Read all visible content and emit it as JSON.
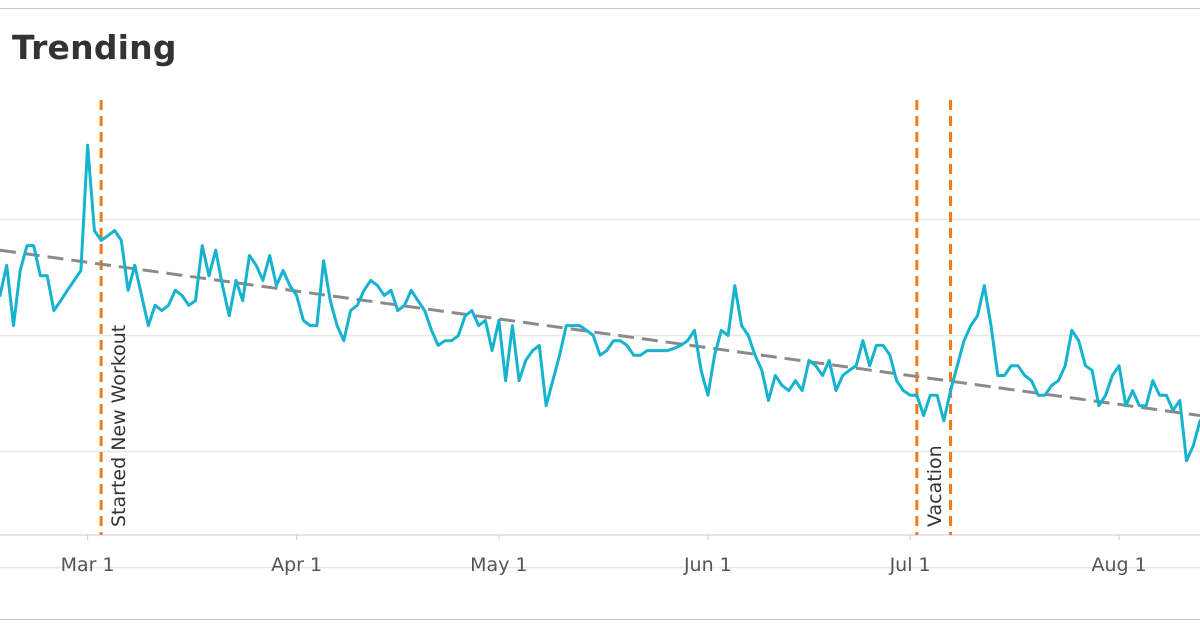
{
  "page": {
    "title": "Trending"
  },
  "colors": {
    "series": "#16b3cf",
    "trend": "#8a8a8a",
    "annotation": "#f07a1a",
    "grid": "#e8e8e8",
    "axis": "#cccccc"
  },
  "chart_data": {
    "type": "line",
    "title": "Trending",
    "xlabel": "",
    "ylabel": "",
    "x_ticks": [
      "2023-03-01",
      "2023-04-01",
      "2023-05-01",
      "2023-06-01",
      "2023-07-01",
      "2023-08-01"
    ],
    "x_tick_labels": [
      "Mar 1",
      "Apr 1",
      "May 1",
      "Jun 1",
      "Jul 1",
      "Aug 1"
    ],
    "xlim": [
      "2023-02-16",
      "2023-08-13"
    ],
    "ylim": [
      0,
      100
    ],
    "gridlines": [
      10,
      30,
      50,
      70
    ],
    "grid": true,
    "series": [
      {
        "type": "solid",
        "x": [
          "2023-02-16",
          "2023-02-17",
          "2023-02-18",
          "2023-02-19",
          "2023-02-20",
          "2023-02-21",
          "2023-02-22",
          "2023-02-23",
          "2023-02-24",
          "2023-02-25",
          "2023-02-26",
          "2023-02-27",
          "2023-02-28",
          "2023-03-01",
          "2023-03-02",
          "2023-03-03",
          "2023-03-04",
          "2023-03-05",
          "2023-03-06",
          "2023-03-07",
          "2023-03-08",
          "2023-03-09",
          "2023-03-10",
          "2023-03-11",
          "2023-03-12",
          "2023-03-13",
          "2023-03-14",
          "2023-03-15",
          "2023-03-16",
          "2023-03-17",
          "2023-03-18",
          "2023-03-19",
          "2023-03-20",
          "2023-03-21",
          "2023-03-22",
          "2023-03-23",
          "2023-03-24",
          "2023-03-25",
          "2023-03-26",
          "2023-03-27",
          "2023-03-28",
          "2023-03-29",
          "2023-03-30",
          "2023-03-31",
          "2023-04-01",
          "2023-04-02",
          "2023-04-03",
          "2023-04-04",
          "2023-04-05",
          "2023-04-06",
          "2023-04-07",
          "2023-04-08",
          "2023-04-09",
          "2023-04-10",
          "2023-04-11",
          "2023-04-12",
          "2023-04-13",
          "2023-04-14",
          "2023-04-15",
          "2023-04-16",
          "2023-04-17",
          "2023-04-18",
          "2023-04-19",
          "2023-04-20",
          "2023-04-21",
          "2023-04-22",
          "2023-04-23",
          "2023-04-24",
          "2023-04-25",
          "2023-04-26",
          "2023-04-27",
          "2023-04-28",
          "2023-04-29",
          "2023-04-30",
          "2023-05-01",
          "2023-05-02",
          "2023-05-03",
          "2023-05-04",
          "2023-05-05",
          "2023-05-06",
          "2023-05-07",
          "2023-05-08",
          "2023-05-09",
          "2023-05-10",
          "2023-05-11",
          "2023-05-12",
          "2023-05-13",
          "2023-05-14",
          "2023-05-15",
          "2023-05-16",
          "2023-05-17",
          "2023-05-18",
          "2023-05-19",
          "2023-05-20",
          "2023-05-21",
          "2023-05-22",
          "2023-05-23",
          "2023-05-24",
          "2023-05-25",
          "2023-05-26",
          "2023-05-27",
          "2023-05-28",
          "2023-05-29",
          "2023-05-30",
          "2023-05-31",
          "2023-06-01",
          "2023-06-02",
          "2023-06-03",
          "2023-06-04",
          "2023-06-05",
          "2023-06-06",
          "2023-06-07",
          "2023-06-08",
          "2023-06-09",
          "2023-06-10",
          "2023-06-11",
          "2023-06-12",
          "2023-06-13",
          "2023-06-14",
          "2023-06-15",
          "2023-06-16",
          "2023-06-17",
          "2023-06-18",
          "2023-06-19",
          "2023-06-20",
          "2023-06-21",
          "2023-06-22",
          "2023-06-23",
          "2023-06-24",
          "2023-06-25",
          "2023-06-26",
          "2023-06-27",
          "2023-06-28",
          "2023-06-29",
          "2023-06-30",
          "2023-07-01",
          "2023-07-02",
          "2023-07-03",
          "2023-07-04",
          "2023-07-05",
          "2023-07-06",
          "2023-07-07",
          "2023-07-08",
          "2023-07-09",
          "2023-07-10",
          "2023-07-11",
          "2023-07-12",
          "2023-07-13",
          "2023-07-14",
          "2023-07-15",
          "2023-07-16",
          "2023-07-17",
          "2023-07-18",
          "2023-07-19",
          "2023-07-20",
          "2023-07-21",
          "2023-07-22",
          "2023-07-23",
          "2023-07-24",
          "2023-07-25",
          "2023-07-26",
          "2023-07-27",
          "2023-07-28",
          "2023-07-29",
          "2023-07-30",
          "2023-07-31",
          "2023-08-01",
          "2023-08-02",
          "2023-08-03",
          "2023-08-04",
          "2023-08-05",
          "2023-08-06",
          "2023-08-07",
          "2023-08-08",
          "2023-08-09",
          "2023-08-10",
          "2023-08-11",
          "2023-08-12",
          "2023-08-13"
        ],
        "y": [
          56.9,
          62.1,
          51.7,
          61.2,
          65.5,
          65.5,
          60.3,
          60.3,
          54.3,
          56.0,
          57.8,
          59.5,
          61.2,
          82.8,
          68.1,
          66.4,
          67.2,
          68.1,
          66.4,
          57.8,
          62.1,
          56.9,
          51.7,
          55.2,
          54.3,
          55.2,
          57.8,
          56.9,
          55.2,
          56.0,
          65.5,
          60.3,
          64.7,
          58.6,
          53.4,
          59.5,
          56.0,
          63.8,
          62.1,
          59.5,
          63.8,
          58.6,
          61.2,
          58.6,
          56.9,
          52.6,
          51.7,
          51.7,
          62.9,
          56.0,
          51.7,
          49.1,
          54.3,
          55.2,
          57.8,
          59.5,
          58.6,
          56.9,
          57.8,
          54.3,
          55.2,
          57.8,
          56.0,
          54.3,
          50.9,
          48.3,
          49.1,
          49.1,
          50.0,
          53.4,
          54.3,
          51.7,
          52.6,
          47.4,
          52.6,
          42.2,
          51.7,
          42.2,
          45.7,
          47.4,
          48.3,
          37.9,
          42.2,
          46.6,
          51.7,
          51.7,
          51.7,
          50.9,
          50.0,
          46.6,
          47.4,
          49.1,
          49.1,
          48.3,
          46.6,
          46.6,
          47.4,
          47.4,
          47.4,
          47.4,
          47.8,
          48.3,
          49.1,
          50.9,
          44.0,
          39.7,
          46.6,
          50.9,
          50.0,
          58.6,
          51.7,
          50.0,
          46.6,
          44.0,
          38.8,
          43.1,
          41.4,
          40.5,
          42.2,
          40.5,
          45.7,
          44.8,
          43.1,
          45.7,
          40.5,
          43.1,
          44.0,
          44.8,
          49.1,
          44.8,
          48.3,
          48.3,
          46.6,
          42.2,
          40.5,
          39.7,
          39.7,
          36.2,
          39.7,
          39.7,
          35.3,
          40.5,
          44.8,
          49.1,
          51.7,
          53.4,
          58.6,
          51.7,
          43.1,
          43.1,
          44.8,
          44.8,
          43.1,
          42.2,
          39.7,
          39.7,
          41.4,
          42.2,
          44.8,
          50.9,
          49.1,
          44.8,
          44.0,
          37.9,
          39.7,
          43.1,
          44.8,
          37.9,
          40.5,
          37.9,
          37.9,
          42.2,
          39.7,
          39.7,
          37.1,
          38.8,
          28.4,
          31.0,
          35.3
        ]
      }
    ],
    "trendline": {
      "x": [
        "2023-02-16",
        "2023-08-13"
      ],
      "y": [
        64.7,
        36.2
      ]
    },
    "annotations": [
      {
        "x": "2023-03-03",
        "label": "Started New Workout"
      },
      {
        "x": "2023-07-02",
        "label": "Vacation"
      },
      {
        "x": "2023-07-07",
        "label": ""
      }
    ]
  }
}
